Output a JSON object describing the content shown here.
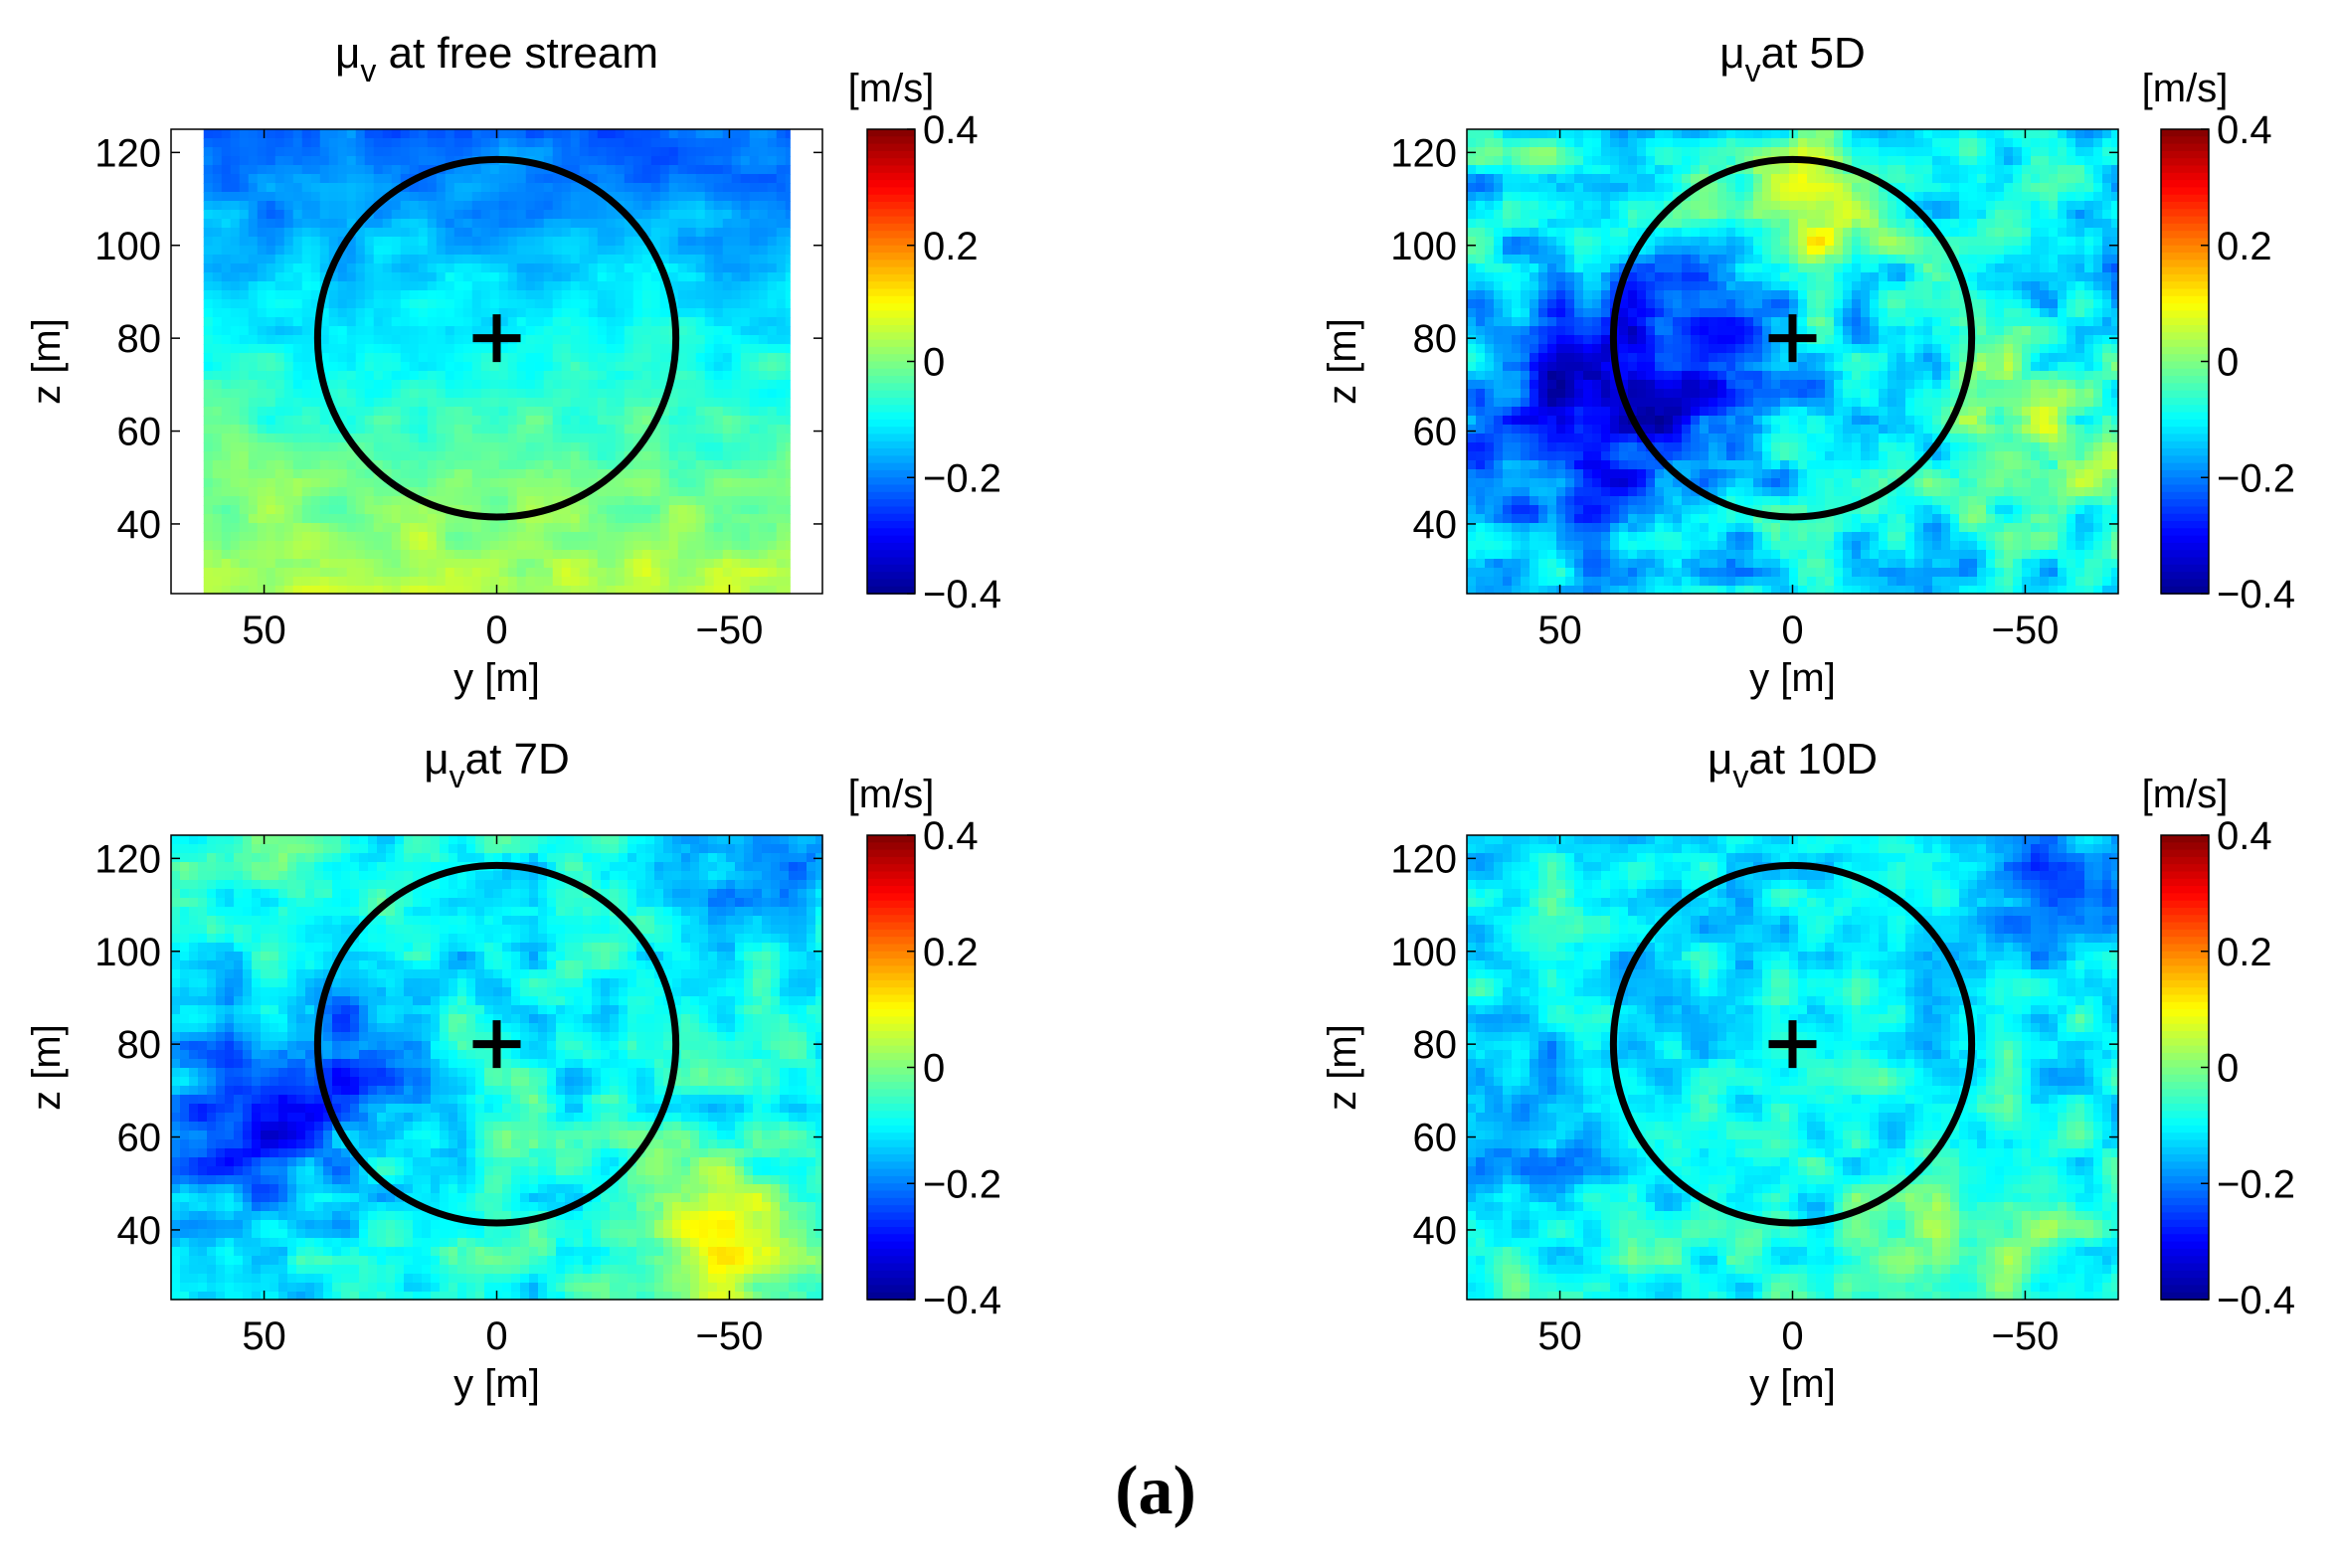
{
  "figure": {
    "label": "(a)",
    "colorscale": [
      "#00008f",
      "#0000ff",
      "#0080ff",
      "#00ffff",
      "#80ff80",
      "#ffff00",
      "#ff8000",
      "#ff0000",
      "#800000"
    ]
  },
  "chart_data": [
    {
      "type": "heatmap",
      "title_symbol": "μ",
      "title_subscript": "v",
      "title_suffix": " at free stream",
      "xlabel": "y [m]",
      "ylabel": "z [m]",
      "xlim": [
        70,
        -70
      ],
      "ylim": [
        25,
        125
      ],
      "xticks": [
        50,
        0,
        -50
      ],
      "xtick_labels": [
        "50",
        "0",
        "−50"
      ],
      "yticks": [
        40,
        60,
        80,
        100,
        120
      ],
      "ytick_labels": [
        "40",
        "60",
        "80",
        "100",
        "120"
      ],
      "data_extent_y": [
        63,
        -63
      ],
      "colorbar": {
        "unit": "[m/s]",
        "min": -0.4,
        "max": 0.4,
        "ticks": [
          0.4,
          0.2,
          0,
          -0.2,
          -0.4
        ],
        "tick_labels": [
          "0.4",
          "0.2",
          "0",
          "−0.2",
          "−0.4"
        ]
      },
      "rotor": {
        "center_y": 0,
        "center_z": 80,
        "radius": 38.5
      },
      "field": {
        "top_value": -0.22,
        "bottom_value": 0.05,
        "noise": 0.04,
        "blobs": []
      }
    },
    {
      "type": "heatmap",
      "title_symbol": "μ",
      "title_subscript": "v",
      "title_suffix": "at 5D",
      "xlabel": "y [m]",
      "ylabel": "z [m]",
      "xlim": [
        70,
        -70
      ],
      "ylim": [
        25,
        125
      ],
      "xticks": [
        50,
        0,
        -50
      ],
      "xtick_labels": [
        "50",
        "0",
        "−50"
      ],
      "yticks": [
        40,
        60,
        80,
        100,
        120
      ],
      "ytick_labels": [
        "40",
        "60",
        "80",
        "100",
        "120"
      ],
      "data_extent_y": [
        70,
        -70
      ],
      "colorbar": {
        "unit": "[m/s]",
        "min": -0.4,
        "max": 0.4,
        "ticks": [
          0.4,
          0.2,
          0,
          -0.2,
          -0.4
        ],
        "tick_labels": [
          "0.4",
          "0.2",
          "0",
          "−0.2",
          "−0.4"
        ]
      },
      "rotor": {
        "center_y": 0,
        "center_z": 80,
        "radius": 38.5
      },
      "field": {
        "top_value": -0.1,
        "bottom_value": -0.12,
        "noise": 0.09,
        "blobs": [
          {
            "y": 45,
            "z": 65,
            "r": 25,
            "v": -0.2
          },
          {
            "y": 20,
            "z": 75,
            "r": 20,
            "v": -0.12
          },
          {
            "y": -3,
            "z": 108,
            "r": 16,
            "v": 0.17
          },
          {
            "y": -55,
            "z": 55,
            "r": 20,
            "v": 0.14
          },
          {
            "y": -60,
            "z": 95,
            "r": 12,
            "v": -0.05
          }
        ]
      }
    },
    {
      "type": "heatmap",
      "title_symbol": "μ",
      "title_subscript": "v",
      "title_suffix": "at 7D",
      "xlabel": "y [m]",
      "ylabel": "z [m]",
      "xlim": [
        70,
        -70
      ],
      "ylim": [
        25,
        125
      ],
      "xticks": [
        50,
        0,
        -50
      ],
      "xtick_labels": [
        "50",
        "0",
        "−50"
      ],
      "yticks": [
        40,
        60,
        80,
        100,
        120
      ],
      "ytick_labels": [
        "40",
        "60",
        "80",
        "100",
        "120"
      ],
      "data_extent_y": [
        70,
        -70
      ],
      "colorbar": {
        "unit": "[m/s]",
        "min": -0.4,
        "max": 0.4,
        "ticks": [
          0.4,
          0.2,
          0,
          -0.2,
          -0.4
        ],
        "tick_labels": [
          "0.4",
          "0.2",
          "0",
          "−0.2",
          "−0.4"
        ]
      },
      "rotor": {
        "center_y": 0,
        "center_z": 80,
        "radius": 38.5
      },
      "field": {
        "top_value": -0.1,
        "bottom_value": -0.08,
        "noise": 0.07,
        "blobs": [
          {
            "y": 55,
            "z": 62,
            "r": 22,
            "v": -0.18
          },
          {
            "y": 30,
            "z": 75,
            "r": 18,
            "v": -0.1
          },
          {
            "y": -50,
            "z": 35,
            "r": 20,
            "v": 0.15
          },
          {
            "y": -55,
            "z": 120,
            "r": 15,
            "v": -0.1
          },
          {
            "y": 45,
            "z": 118,
            "r": 14,
            "v": 0.06
          }
        ]
      }
    },
    {
      "type": "heatmap",
      "title_symbol": "μ",
      "title_subscript": "v",
      "title_suffix": "at 10D",
      "xlabel": "y [m]",
      "ylabel": "z [m]",
      "xlim": [
        70,
        -70
      ],
      "ylim": [
        25,
        125
      ],
      "xticks": [
        50,
        0,
        -50
      ],
      "xtick_labels": [
        "50",
        "0",
        "−50"
      ],
      "yticks": [
        40,
        60,
        80,
        100,
        120
      ],
      "ytick_labels": [
        "40",
        "60",
        "80",
        "100",
        "120"
      ],
      "data_extent_y": [
        70,
        -70
      ],
      "colorbar": {
        "unit": "[m/s]",
        "min": -0.4,
        "max": 0.4,
        "ticks": [
          0.4,
          0.2,
          0,
          -0.2,
          -0.4
        ],
        "tick_labels": [
          "0.4",
          "0.2",
          "0",
          "−0.2",
          "−0.4"
        ]
      },
      "rotor": {
        "center_y": 0,
        "center_z": 80,
        "radius": 38.5
      },
      "field": {
        "top_value": -0.12,
        "bottom_value": -0.08,
        "noise": 0.07,
        "blobs": [
          {
            "y": 55,
            "z": 65,
            "r": 18,
            "v": -0.1
          },
          {
            "y": -55,
            "z": 115,
            "r": 14,
            "v": -0.12
          },
          {
            "y": -40,
            "z": 40,
            "r": 18,
            "v": 0.08
          },
          {
            "y": 40,
            "z": 120,
            "r": 12,
            "v": 0.04
          }
        ]
      }
    }
  ]
}
